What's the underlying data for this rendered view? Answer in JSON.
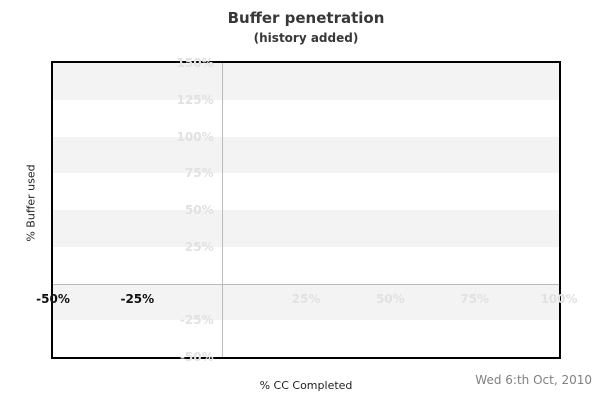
{
  "chart_data": {
    "type": "line",
    "title": "Buffer penetration",
    "subtitle": "(history added)",
    "xlabel": "% CC Completed",
    "ylabel": "% Buffer used",
    "footer_date": "Wed 6:th Oct, 2010",
    "xlim": [
      -50,
      100
    ],
    "ylim": [
      -50,
      150
    ],
    "grid": false,
    "legend": "none",
    "x_ticks": [
      {
        "value": -50,
        "label": "-50%",
        "emphasis": true
      },
      {
        "value": -25,
        "label": "-25%",
        "emphasis": true
      },
      {
        "value": 25,
        "label": "25%",
        "emphasis": false
      },
      {
        "value": 50,
        "label": "50%",
        "emphasis": false
      },
      {
        "value": 75,
        "label": "75%",
        "emphasis": false
      },
      {
        "value": 100,
        "label": "100%",
        "emphasis": false
      }
    ],
    "y_ticks": [
      {
        "value": 150,
        "label": "150%"
      },
      {
        "value": 125,
        "label": "125%"
      },
      {
        "value": 100,
        "label": "100%"
      },
      {
        "value": 75,
        "label": "75%"
      },
      {
        "value": 50,
        "label": "50%"
      },
      {
        "value": 25,
        "label": "25%"
      },
      {
        "value": -25,
        "label": "-25%"
      },
      {
        "value": -50,
        "label": "-50%"
      }
    ],
    "shaded_bands": [
      [
        125,
        150
      ],
      [
        75,
        100
      ],
      [
        25,
        50
      ],
      [
        -25,
        0
      ]
    ],
    "zero_lines": {
      "vertical_at_x": 0,
      "horizontal_at_y": 0
    },
    "series": []
  },
  "colors": {
    "band": "#f3f3f3",
    "faint_label": "#e1e1e1",
    "dark_label": "#111111",
    "gridline": "#bbbbbb",
    "plot_border": "#000000",
    "title_text": "#383838",
    "axis_text": "#222222",
    "date_text": "#808080"
  }
}
